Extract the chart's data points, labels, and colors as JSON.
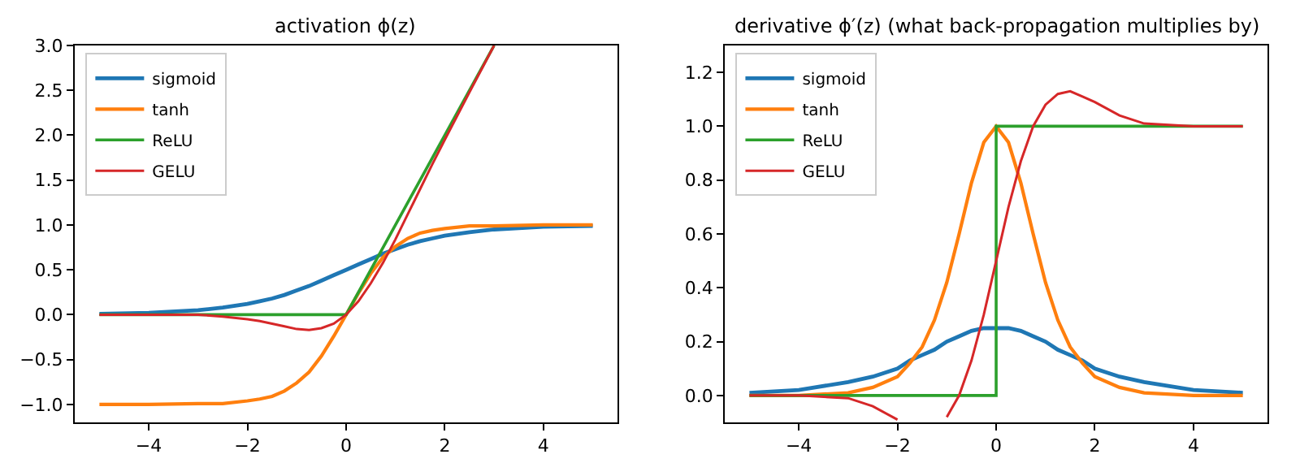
{
  "chart_data": [
    {
      "type": "line",
      "title": "activation ϕ(z)",
      "legend": "top left",
      "line_style": "solid",
      "x": [
        -5,
        -4,
        -3,
        -2.5,
        -2,
        -1.75,
        -1.5,
        -1.25,
        -1,
        -0.75,
        -0.5,
        -0.25,
        0,
        0.25,
        0.5,
        0.75,
        1,
        1.25,
        1.5,
        1.75,
        2,
        2.5,
        3,
        4,
        5
      ],
      "series": [
        {
          "name": "sigmoid",
          "color": "#1f77b4",
          "values": [
            0.01,
            0.02,
            0.05,
            0.08,
            0.12,
            0.15,
            0.18,
            0.22,
            0.27,
            0.32,
            0.38,
            0.44,
            0.5,
            0.56,
            0.62,
            0.68,
            0.73,
            0.78,
            0.82,
            0.85,
            0.88,
            0.92,
            0.95,
            0.98,
            0.99
          ]
        },
        {
          "name": "tanh",
          "color": "#ff7f0e",
          "values": [
            -1.0,
            -1.0,
            -0.99,
            -0.99,
            -0.96,
            -0.94,
            -0.91,
            -0.85,
            -0.76,
            -0.64,
            -0.46,
            -0.24,
            0,
            0.24,
            0.46,
            0.64,
            0.76,
            0.85,
            0.91,
            0.94,
            0.96,
            0.99,
            0.99,
            1.0,
            1.0
          ]
        },
        {
          "name": "ReLU",
          "color": "#2ca02c",
          "x": [
            -5,
            0,
            3
          ],
          "values": [
            0,
            0,
            3
          ]
        },
        {
          "name": "GELU",
          "color": "#d62728",
          "values": [
            0,
            0,
            0,
            -0.02,
            -0.05,
            -0.07,
            -0.1,
            -0.13,
            -0.16,
            -0.17,
            -0.15,
            -0.1,
            0,
            0.15,
            0.35,
            0.58,
            0.84,
            1.12,
            1.4,
            1.68,
            1.95,
            2.48,
            3.0,
            null,
            null
          ]
        }
      ],
      "xlim": [
        -5.5,
        5.5
      ],
      "ylim": [
        -1.2,
        3.0
      ],
      "xticks": [
        -4,
        -2,
        0,
        2,
        4
      ],
      "yticks": [
        {
          "value": -1,
          "label": "−1.0"
        },
        {
          "value": -0.5,
          "label": "−0.5"
        },
        {
          "value": 0,
          "label": "0.0"
        },
        {
          "value": 0.5,
          "label": "0.5"
        },
        {
          "value": 1,
          "label": "1.0"
        },
        {
          "value": 1.5,
          "label": "1.5"
        },
        {
          "value": 2,
          "label": "2.0"
        },
        {
          "value": 2.5,
          "label": "2.5"
        },
        {
          "value": 3,
          "label": "3.0"
        }
      ]
    },
    {
      "type": "line",
      "title": "derivative ϕ′(z) (what back-propagation multiplies by)",
      "legend": "top left",
      "line_style": "solid",
      "x": [
        -5,
        -4,
        -3,
        -2.5,
        -2,
        -1.75,
        -1.5,
        -1.25,
        -1,
        -0.75,
        -0.5,
        -0.25,
        0,
        0.25,
        0.5,
        0.75,
        1,
        1.25,
        1.5,
        1.75,
        2,
        2.5,
        3,
        4,
        5
      ],
      "series": [
        {
          "name": "sigmoid",
          "color": "#1f77b4",
          "values": [
            0.01,
            0.02,
            0.05,
            0.07,
            0.1,
            0.13,
            0.15,
            0.17,
            0.2,
            0.22,
            0.24,
            0.25,
            0.25,
            0.25,
            0.24,
            0.22,
            0.2,
            0.17,
            0.15,
            0.13,
            0.1,
            0.07,
            0.05,
            0.02,
            0.01
          ]
        },
        {
          "name": "tanh",
          "color": "#ff7f0e",
          "values": [
            0,
            0,
            0.01,
            0.03,
            0.07,
            0.12,
            0.18,
            0.28,
            0.42,
            0.6,
            0.79,
            0.94,
            1.0,
            0.94,
            0.79,
            0.6,
            0.42,
            0.28,
            0.18,
            0.12,
            0.07,
            0.03,
            0.01,
            0,
            0
          ]
        },
        {
          "name": "ReLU",
          "color": "#2ca02c",
          "x": [
            -5,
            0,
            0,
            5
          ],
          "values": [
            0,
            0,
            1,
            1
          ]
        },
        {
          "name": "GELU",
          "color": "#d62728",
          "values": [
            0,
            0,
            -0.01,
            -0.04,
            -0.09,
            null,
            null,
            null,
            -0.08,
            0,
            0.13,
            0.3,
            0.5,
            0.7,
            0.87,
            1.0,
            1.08,
            1.12,
            1.13,
            1.11,
            1.09,
            1.04,
            1.01,
            1.0,
            1.0
          ]
        }
      ],
      "xlim": [
        -5.5,
        5.5
      ],
      "ylim": [
        -0.1,
        1.3
      ],
      "xticks": [
        -4,
        -2,
        0,
        2,
        4
      ],
      "yticks": [
        {
          "value": 0,
          "label": "0.0"
        },
        {
          "value": 0.2,
          "label": "0.2"
        },
        {
          "value": 0.4,
          "label": "0.4"
        },
        {
          "value": 0.6,
          "label": "0.6"
        },
        {
          "value": 0.8,
          "label": "0.8"
        },
        {
          "value": 1.0,
          "label": "1.0"
        },
        {
          "value": 1.2,
          "label": "1.2"
        }
      ]
    }
  ]
}
